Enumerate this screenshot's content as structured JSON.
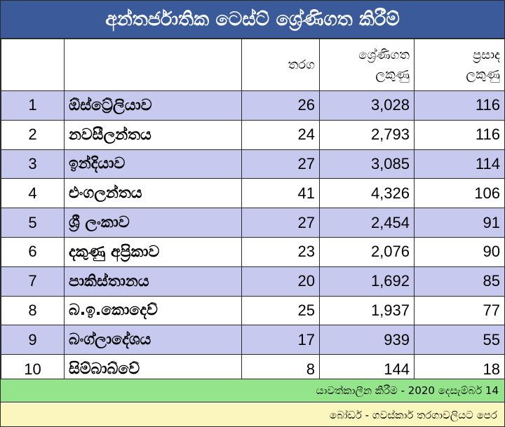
{
  "title": "අන්තර්ජාතික ටෙස්ට් ශ්‍රේණිගත කිරීම්",
  "header": {
    "rank": "",
    "team": "",
    "matches": "තරග",
    "ranking_points_line1": "ශ්‍රේණිගත",
    "ranking_points_line2": "ලකුණු",
    "rating_line1": "ප්‍රසාද",
    "rating_line2": "ලකුණු"
  },
  "rows": [
    {
      "rank": "1",
      "team": "ඕස්ට්‍රේලියාව",
      "matches": "26",
      "points": "3,028",
      "rating": "116"
    },
    {
      "rank": "2",
      "team": "නවසීලන්තය",
      "matches": "24",
      "points": "2,793",
      "rating": "116"
    },
    {
      "rank": "3",
      "team": "ඉන්දියාව",
      "matches": "27",
      "points": "3,085",
      "rating": "114"
    },
    {
      "rank": "4",
      "team": "එංගලන්තය",
      "matches": "41",
      "points": "4,326",
      "rating": "106"
    },
    {
      "rank": "5",
      "team": "ශ්‍රී ලංකාව",
      "matches": "27",
      "points": "2,454",
      "rating": "91"
    },
    {
      "rank": "6",
      "team": "දකුණු අප්‍රිකාව",
      "matches": "23",
      "points": "2,076",
      "rating": "90"
    },
    {
      "rank": "7",
      "team": "පාකිස්තානය",
      "matches": "20",
      "points": "1,692",
      "rating": "85"
    },
    {
      "rank": "8",
      "team": "බ.ඉ.කොදෙව්",
      "matches": "25",
      "points": "1,937",
      "rating": "77"
    },
    {
      "rank": "9",
      "team": "බංග්ලාදේශය",
      "matches": "17",
      "points": "939",
      "rating": "55"
    },
    {
      "rank": "10",
      "team": "සිම්බාබ්වේ",
      "matches": "8",
      "points": "144",
      "rating": "18"
    }
  ],
  "footer": {
    "updated": "යාවත්කාලීන කිරීම  - 2020 දෙසැම්බර් 14",
    "note": "බෝඩර් - ගවස්කාර් තරගාවලියට පෙර"
  },
  "colors": {
    "title_bg": "#3a5a9a",
    "odd_row_bg": "#c7c9ee",
    "even_row_bg": "#ffffff",
    "footer_green": "#93e48a",
    "footer_yellow": "#fbf5be"
  }
}
